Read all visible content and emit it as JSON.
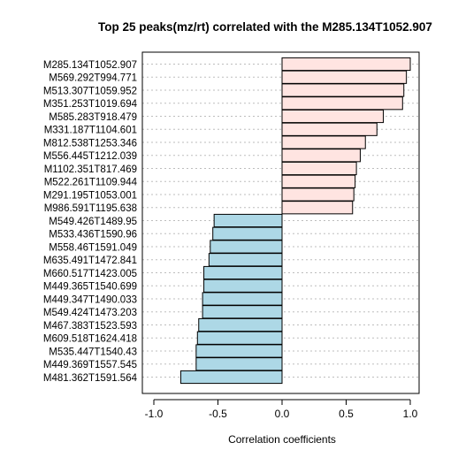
{
  "chart_data": {
    "type": "bar",
    "orientation": "horizontal",
    "title": "Top 25 peaks(mz/rt) correlated with the M285.134T1052.907",
    "xlabel": "Correlation coefficients",
    "ylabel": "",
    "xlim": [
      -1.0,
      1.0
    ],
    "xticks": [
      "-1.0",
      "-0.5",
      "0.0",
      "0.5",
      "1.0"
    ],
    "grid": "dotted horizontal",
    "colors": {
      "positive": "#ffe4e1",
      "negative": "#add8e6",
      "outline": "#000000"
    },
    "categories": [
      "M285.134T1052.907",
      "M569.292T994.771",
      "M513.307T1059.952",
      "M351.253T1019.694",
      "M585.283T918.479",
      "M331.187T1104.601",
      "M812.538T1253.346",
      "M556.445T1212.039",
      "M1102.351T817.469",
      "M522.261T1109.944",
      "M291.195T1053.001",
      "M986.591T1195.638",
      "M549.426T1489.95",
      "M533.436T1590.96",
      "M558.46T1591.049",
      "M635.491T1472.841",
      "M660.517T1423.005",
      "M449.365T1540.699",
      "M449.347T1490.033",
      "M549.424T1473.203",
      "M467.383T1523.593",
      "M609.518T1624.418",
      "M535.447T1540.43",
      "M449.369T1557.545",
      "M481.362T1591.564"
    ],
    "values": [
      1.0,
      0.97,
      0.95,
      0.94,
      0.79,
      0.74,
      0.65,
      0.61,
      0.58,
      0.57,
      0.56,
      0.55,
      -0.53,
      -0.54,
      -0.56,
      -0.57,
      -0.61,
      -0.61,
      -0.62,
      -0.62,
      -0.65,
      -0.66,
      -0.67,
      -0.67,
      -0.79
    ]
  }
}
